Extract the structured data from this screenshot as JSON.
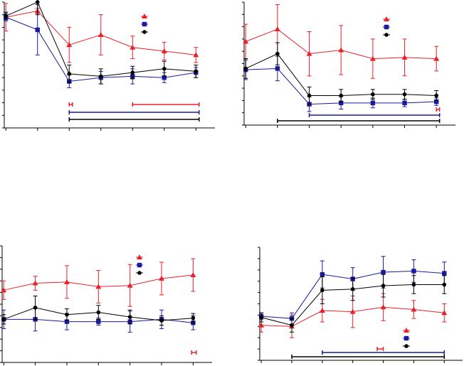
{
  "figure": {
    "series_styles": {
      "red": {
        "color": "#e8202a",
        "marker": "triangle"
      },
      "blue": {
        "color": "#1a1a9c",
        "marker": "square"
      },
      "black": {
        "color": "#000000",
        "marker": "circle"
      }
    }
  },
  "chart_data": [
    {
      "type": "line",
      "panel": "top-left",
      "x": [
        0,
        1,
        2,
        3,
        4,
        5,
        6
      ],
      "xlim": [
        -0.05,
        6.6
      ],
      "ylim": [
        0,
        100
      ],
      "y_ticks": [
        0,
        10,
        20,
        30,
        40,
        50,
        60,
        70,
        80,
        90,
        100
      ],
      "legend": {
        "position": "top-right",
        "entries": [
          "",
          "",
          ""
        ]
      },
      "series": [
        {
          "style": "red",
          "values": [
            88,
            93,
            66,
            74,
            64,
            61,
            58
          ],
          "errors": [
            11,
            2,
            14,
            16,
            9,
            7,
            6
          ]
        },
        {
          "style": "blue",
          "values": [
            88,
            78,
            37,
            40,
            41,
            40,
            44
          ],
          "errors": [
            3,
            20,
            5,
            5,
            6,
            4,
            4
          ]
        },
        {
          "style": "black",
          "values": [
            89,
            100,
            43,
            41,
            44,
            47,
            45
          ],
          "errors": [
            3,
            10,
            7,
            6,
            5,
            6,
            5
          ]
        }
      ],
      "significance_bars": [
        {
          "color": "red",
          "segments": [
            [
              2,
              2.1
            ],
            [
              4,
              6.1
            ]
          ]
        },
        {
          "color": "blue",
          "segments": [
            [
              2,
              6.1
            ]
          ]
        },
        {
          "color": "black",
          "segments": [
            [
              2,
              6.1
            ]
          ]
        }
      ]
    },
    {
      "type": "line",
      "panel": "top-right",
      "x": [
        0,
        1,
        2,
        3,
        4,
        5,
        6
      ],
      "xlim": [
        -0.05,
        6.6
      ],
      "ylim": [
        0,
        100
      ],
      "legend": {
        "position": "top-right",
        "entries": [
          "",
          "",
          ""
        ]
      },
      "series": [
        {
          "style": "red",
          "values": [
            68,
            78,
            58,
            61,
            54,
            55,
            54
          ],
          "errors": [
            14,
            20,
            18,
            20,
            16,
            15,
            10
          ]
        },
        {
          "style": "blue",
          "values": [
            45,
            46,
            17,
            18,
            18,
            18,
            19
          ],
          "errors": [
            8,
            10,
            6,
            5,
            4,
            3,
            3
          ]
        },
        {
          "style": "black",
          "values": [
            46,
            58,
            24,
            24,
            25,
            25,
            24
          ],
          "errors": [
            8,
            9,
            7,
            5,
            4,
            4,
            4
          ]
        }
      ],
      "significance_bars": [
        {
          "color": "red",
          "segments": [
            [
              6,
              6.1
            ]
          ]
        },
        {
          "color": "blue",
          "segments": [
            [
              2,
              6.1
            ]
          ]
        },
        {
          "color": "black",
          "segments": [
            [
              1,
              6.1
            ]
          ]
        }
      ]
    },
    {
      "type": "line",
      "panel": "bottom-left",
      "x": [
        0,
        1,
        2,
        3,
        4,
        5,
        6
      ],
      "xlim": [
        -0.05,
        6.6
      ],
      "ylim": [
        0,
        100
      ],
      "legend": {
        "position": "top-right",
        "entries": [
          "",
          "",
          ""
        ]
      },
      "series": [
        {
          "style": "red",
          "values": [
            62,
            68,
            69,
            65,
            66,
            72,
            75
          ],
          "errors": [
            8,
            6,
            14,
            14,
            18,
            14,
            14
          ]
        },
        {
          "style": "blue",
          "values": [
            37,
            37,
            35,
            35,
            35,
            37,
            34
          ],
          "errors": [
            8,
            10,
            7,
            3,
            9,
            8,
            6
          ]
        },
        {
          "style": "black",
          "values": [
            37,
            47,
            41,
            43,
            39,
            36,
            38
          ],
          "errors": [
            4,
            10,
            5,
            6,
            6,
            4,
            4
          ]
        }
      ],
      "significance_bars": [
        {
          "color": "red",
          "segments": [
            [
              5.95,
              6.1
            ]
          ]
        }
      ]
    },
    {
      "type": "line",
      "panel": "bottom-right",
      "x": [
        0,
        1,
        2,
        3,
        4,
        5,
        6
      ],
      "xlim": [
        -0.05,
        6.6
      ],
      "ylim": [
        0,
        100
      ],
      "legend": {
        "position": "bottom-right",
        "entries": [
          "",
          "",
          ""
        ]
      },
      "series": [
        {
          "style": "red",
          "values": [
            31,
            30,
            44,
            43,
            47,
            45,
            42
          ],
          "errors": [
            6,
            10,
            10,
            14,
            12,
            8,
            8
          ]
        },
        {
          "style": "blue",
          "values": [
            39,
            37,
            76,
            72,
            78,
            79,
            77
          ],
          "errors": [
            3,
            5,
            12,
            10,
            14,
            10,
            10
          ]
        },
        {
          "style": "black",
          "values": [
            38,
            31,
            62,
            63,
            66,
            67,
            67
          ],
          "errors": [
            4,
            6,
            12,
            10,
            10,
            8,
            8
          ]
        }
      ],
      "significance_bars": [
        {
          "color": "red",
          "segments": [
            [
              3.8,
              4
            ]
          ]
        },
        {
          "color": "blue",
          "segments": [
            [
              2,
              6
            ]
          ]
        },
        {
          "color": "black",
          "segments": [
            [
              1,
              6
            ]
          ]
        }
      ]
    }
  ]
}
